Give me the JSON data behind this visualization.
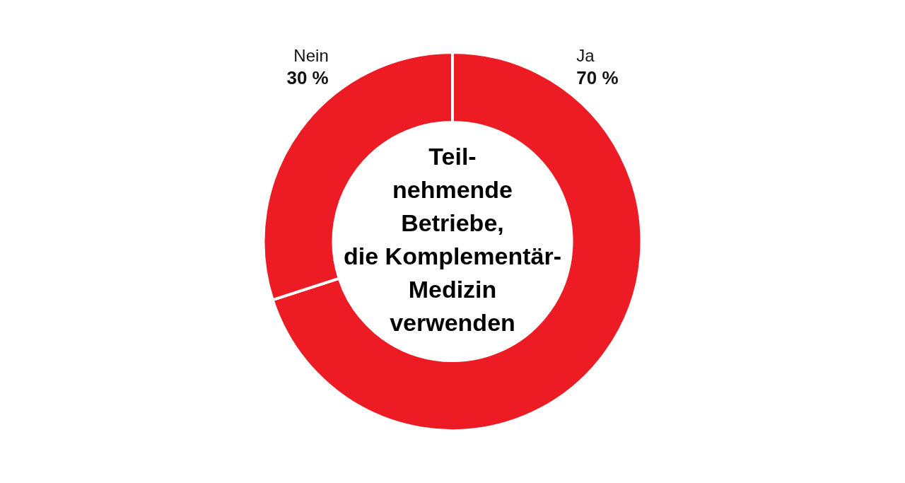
{
  "chart_data": {
    "type": "donut",
    "title": "Teil-\nnehmende\nBetriebe,\ndie Komplementär-\nMedizin\nverwenden",
    "categories": [
      "Ja",
      "Nein"
    ],
    "values": [
      70,
      30
    ],
    "colors": [
      "#ed1c24",
      "#ed1c24"
    ],
    "value_labels": [
      "70 %",
      "30 %"
    ],
    "legend": false
  }
}
